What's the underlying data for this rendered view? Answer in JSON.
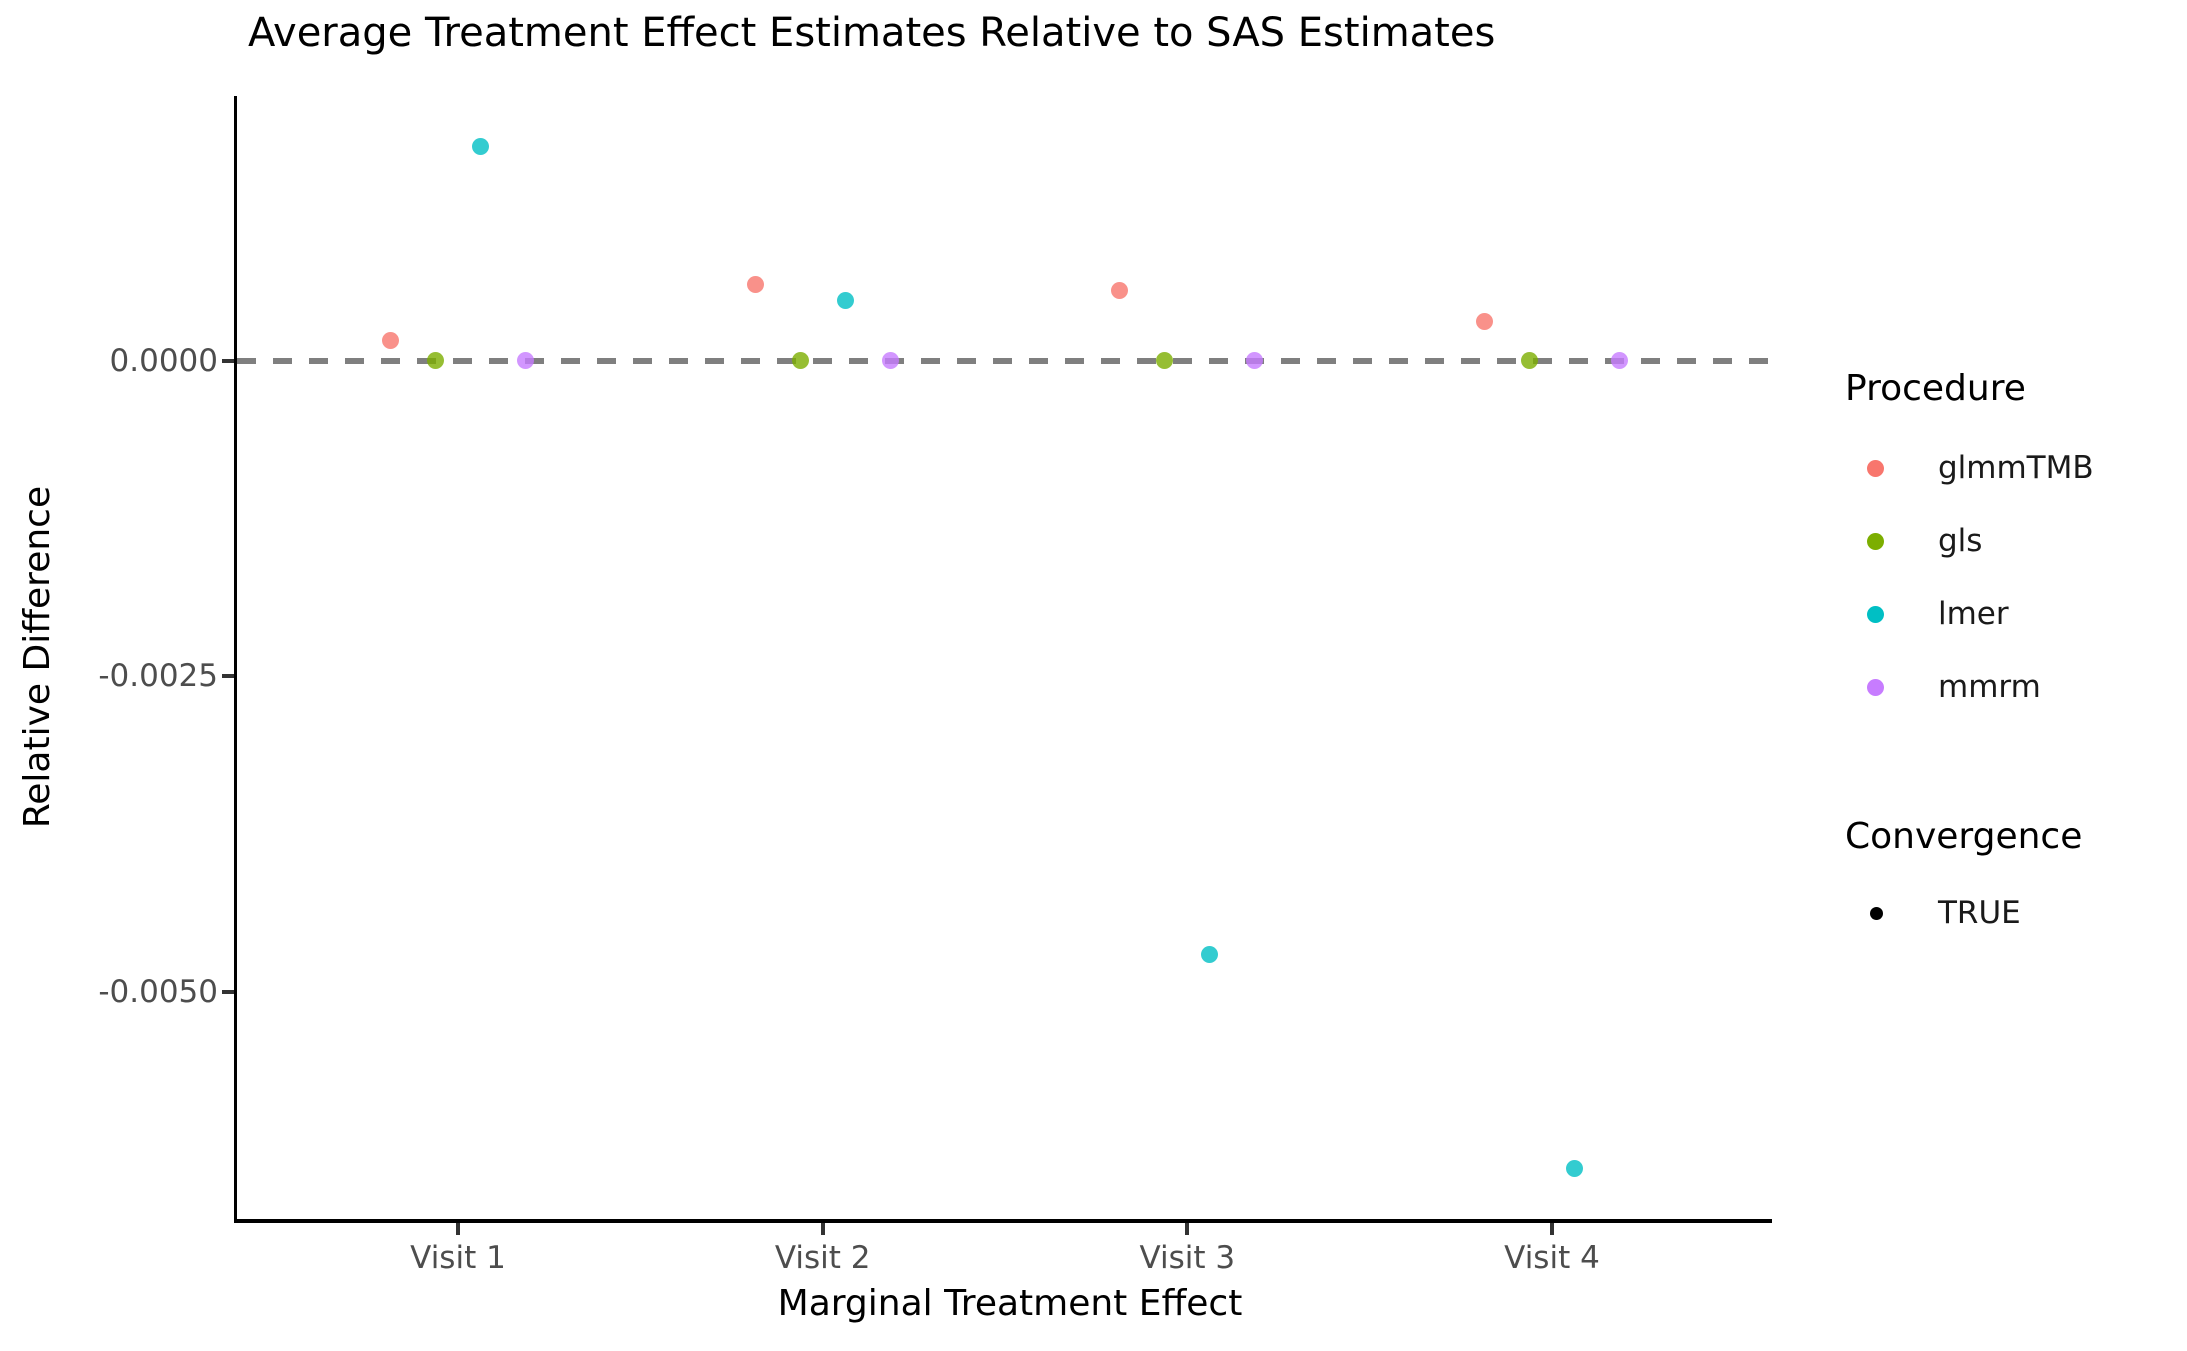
{
  "chart_data": {
    "type": "scatter",
    "title": "Average Treatment Effect Estimates Relative to SAS Estimates",
    "xlabel": "Marginal Treatment Effect",
    "ylabel": "Relative Difference",
    "categories": [
      "Visit 1",
      "Visit 2",
      "Visit 3",
      "Visit 4"
    ],
    "series": [
      {
        "name": "glmmTMB",
        "color": "#F8766D",
        "values": [
          0.00016,
          0.00061,
          0.00056,
          0.00031
        ]
      },
      {
        "name": "gls",
        "color": "#7CAE00",
        "values": [
          0.0,
          0.0,
          0.0,
          0.0
        ]
      },
      {
        "name": "lmer",
        "color": "#00BFC4",
        "values": [
          0.0017,
          0.00048,
          -0.0047,
          -0.0064
        ]
      },
      {
        "name": "mmrm",
        "color": "#C77CFF",
        "values": [
          0.0,
          0.0,
          0.0,
          0.0
        ]
      }
    ],
    "y_ticks": [
      0.0,
      -0.0025,
      -0.005
    ],
    "y_tick_labels": [
      "0.0000",
      "-0.0025",
      "-0.0050"
    ],
    "ylim": [
      -0.0068,
      0.0021
    ],
    "grid": false,
    "reference_line": {
      "y": 0.0,
      "style": "dashed",
      "color": "#7f7f7f"
    },
    "legend_position": "right",
    "legend": {
      "procedure_title": "Procedure",
      "convergence_title": "Convergence",
      "convergence_items": [
        {
          "label": "TRUE",
          "color": "#000000"
        }
      ]
    }
  }
}
